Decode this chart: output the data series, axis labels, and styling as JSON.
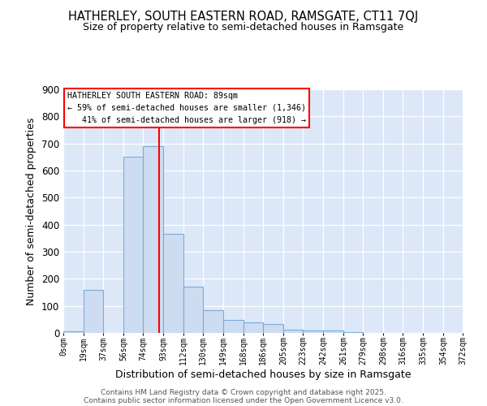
{
  "title": "HATHERLEY, SOUTH EASTERN ROAD, RAMSGATE, CT11 7QJ",
  "subtitle": "Size of property relative to semi-detached houses in Ramsgate",
  "xlabel": "Distribution of semi-detached houses by size in Ramsgate",
  "ylabel": "Number of semi-detached properties",
  "bar_color": "#cddcf0",
  "bar_edge_color": "#7aabde",
  "background_color": "#dce8f8",
  "vline_value": 89,
  "vline_color": "red",
  "bin_edges": [
    0,
    19,
    37,
    56,
    74,
    93,
    112,
    130,
    149,
    168,
    186,
    205,
    223,
    242,
    261,
    279,
    298,
    316,
    335,
    354,
    372
  ],
  "bin_labels": [
    "0sqm",
    "19sqm",
    "37sqm",
    "56sqm",
    "74sqm",
    "93sqm",
    "112sqm",
    "130sqm",
    "149sqm",
    "168sqm",
    "186sqm",
    "205sqm",
    "223sqm",
    "242sqm",
    "261sqm",
    "279sqm",
    "298sqm",
    "316sqm",
    "335sqm",
    "354sqm",
    "372sqm"
  ],
  "counts": [
    5,
    160,
    0,
    650,
    690,
    365,
    170,
    85,
    48,
    38,
    32,
    12,
    10,
    10,
    2,
    0,
    0,
    0,
    0,
    0
  ],
  "ylim": [
    0,
    900
  ],
  "yticks": [
    0,
    100,
    200,
    300,
    400,
    500,
    600,
    700,
    800,
    900
  ],
  "annotation_line1": "HATHERLEY SOUTH EASTERN ROAD: 89sqm",
  "annotation_line2": "← 59% of semi-detached houses are smaller (1,346)",
  "annotation_line3": "   41% of semi-detached houses are larger (918) →",
  "footer_line1": "Contains HM Land Registry data © Crown copyright and database right 2025.",
  "footer_line2": "Contains public sector information licensed under the Open Government Licence v3.0."
}
